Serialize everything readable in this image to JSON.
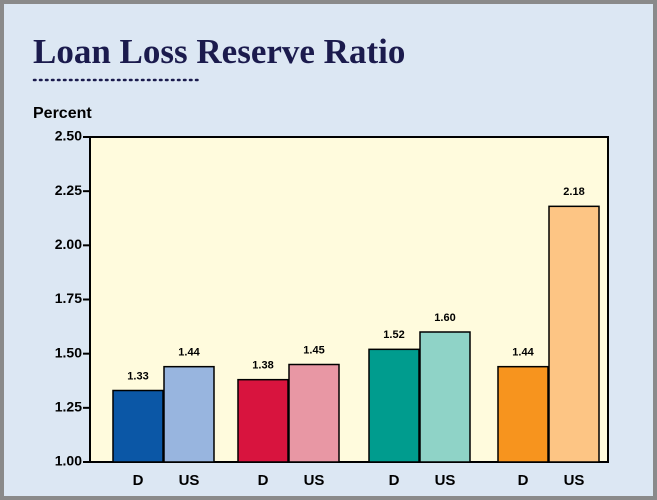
{
  "chart_data": {
    "type": "bar",
    "title": "Loan Loss Reserve Ratio",
    "y_label": "Percent",
    "categories": [
      "D",
      "US",
      "D",
      "US",
      "D",
      "US",
      "D",
      "US"
    ],
    "values": [
      1.33,
      1.44,
      1.38,
      1.45,
      1.52,
      1.6,
      1.44,
      2.18
    ],
    "value_labels": [
      "1.33",
      "1.44",
      "1.38",
      "1.45",
      "1.52",
      "1.60",
      "1.44",
      "2.18"
    ],
    "colors": [
      "#0b57a6",
      "#98b5df",
      "#d8143e",
      "#e897a4",
      "#009c8e",
      "#8fd3c7",
      "#f7941e",
      "#fdc584"
    ],
    "ylim": [
      1,
      2.5
    ],
    "yticks": [
      {
        "value": 1,
        "label": "1.00"
      },
      {
        "value": 1.25,
        "label": "1.25"
      },
      {
        "value": 1.5,
        "label": "1.50"
      },
      {
        "value": 1.75,
        "label": "1.75"
      },
      {
        "value": 2,
        "label": "2.00"
      },
      {
        "value": 2.25,
        "label": "2.25"
      },
      {
        "value": 2.5,
        "label": "2.50"
      }
    ]
  }
}
